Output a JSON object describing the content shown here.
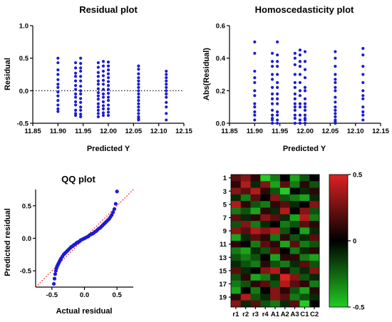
{
  "chart_data": [
    {
      "type": "scatter",
      "title": "Residual plot",
      "xlabel": "Predicted Y",
      "ylabel": "Residual",
      "xlim": [
        11.85,
        12.15
      ],
      "ylim": [
        -0.5,
        1.0
      ],
      "xticks": [
        "11.85",
        "11.90",
        "11.95",
        "12.00",
        "12.05",
        "12.10",
        "12.15"
      ],
      "yticks": [
        "-0.5",
        "0.0",
        "0.5",
        "1.0"
      ],
      "reference_line": {
        "y": 0.0,
        "style": "dotted"
      },
      "color": "#1b1bd6",
      "series": [
        {
          "x": [
            11.9,
            11.9,
            11.9,
            11.9,
            11.9,
            11.9,
            11.9,
            11.9,
            11.9,
            11.9,
            11.9,
            11.9,
            11.9,
            11.935,
            11.935,
            11.935,
            11.935,
            11.935,
            11.935,
            11.935,
            11.935,
            11.935,
            11.935,
            11.935,
            11.935,
            11.935,
            11.935,
            11.945,
            11.945,
            11.945,
            11.945,
            11.945,
            11.945,
            11.945,
            11.945,
            11.945,
            11.945,
            11.945,
            11.945,
            11.945,
            11.945,
            11.945,
            11.98,
            11.98,
            11.98,
            11.98,
            11.98,
            11.98,
            11.98,
            11.98,
            11.98,
            11.98,
            11.98,
            11.98,
            11.98,
            11.98,
            11.98,
            11.99,
            11.99,
            11.99,
            11.99,
            11.99,
            11.99,
            11.99,
            11.99,
            11.99,
            11.99,
            11.99,
            11.99,
            11.99,
            11.99,
            12.0,
            12.0,
            12.0,
            12.0,
            12.0,
            12.0,
            12.0,
            12.0,
            12.0,
            12.0,
            12.0,
            12.0,
            12.0,
            12.0,
            12.0,
            12.06,
            12.06,
            12.06,
            12.06,
            12.06,
            12.06,
            12.06,
            12.06,
            12.06,
            12.06,
            12.06,
            12.06,
            12.06,
            12.06,
            12.06,
            12.06,
            12.06,
            12.06,
            12.115,
            12.115,
            12.115,
            12.115,
            12.115,
            12.115,
            12.115,
            12.115,
            12.115,
            12.115,
            12.115,
            12.115,
            12.115
          ],
          "y": [
            0.5,
            0.43,
            0.32,
            0.25,
            0.17,
            0.1,
            0.05,
            -0.02,
            -0.08,
            -0.15,
            -0.22,
            -0.28,
            -0.32,
            0.43,
            0.35,
            0.27,
            0.22,
            0.15,
            0.08,
            0.02,
            -0.05,
            -0.1,
            -0.17,
            -0.22,
            -0.3,
            -0.35,
            -0.38,
            0.5,
            0.42,
            0.35,
            0.3,
            0.22,
            0.15,
            0.07,
            0.0,
            -0.05,
            -0.12,
            -0.18,
            -0.25,
            -0.3,
            -0.36,
            -0.4,
            0.43,
            0.36,
            0.28,
            0.22,
            0.15,
            0.1,
            0.03,
            -0.03,
            -0.08,
            -0.13,
            -0.2,
            -0.25,
            -0.3,
            -0.35,
            -0.4,
            0.45,
            0.38,
            0.3,
            0.23,
            0.16,
            0.1,
            0.02,
            -0.05,
            -0.1,
            -0.17,
            -0.23,
            -0.28,
            -0.34,
            -0.38,
            0.44,
            0.38,
            0.32,
            0.26,
            0.2,
            0.14,
            0.08,
            0.02,
            -0.04,
            -0.1,
            -0.15,
            -0.22,
            -0.28,
            -0.33,
            -0.38,
            0.38,
            0.33,
            0.26,
            0.2,
            0.15,
            0.1,
            0.05,
            0.0,
            -0.05,
            -0.1,
            -0.15,
            -0.2,
            -0.25,
            -0.3,
            -0.35,
            -0.4,
            -0.43,
            -0.45,
            0.3,
            0.25,
            0.2,
            0.15,
            0.1,
            0.05,
            0.0,
            -0.05,
            -0.1,
            -0.18,
            -0.25,
            -0.35,
            -0.45
          ]
        }
      ]
    },
    {
      "type": "scatter",
      "title": "Homoscedasticity plot",
      "xlabel": "Predicted Y",
      "ylabel": "Abs(Residual)",
      "xlim": [
        11.85,
        12.15
      ],
      "ylim": [
        0.0,
        0.6
      ],
      "xticks": [
        "11.85",
        "11.90",
        "11.95",
        "12.00",
        "12.05",
        "12.10",
        "12.15"
      ],
      "yticks": [
        "0.0",
        "0.2",
        "0.4",
        "0.6"
      ],
      "color": "#1b1bd6",
      "series": [
        {
          "x": [
            11.9,
            11.9,
            11.9,
            11.9,
            11.9,
            11.9,
            11.9,
            11.9,
            11.9,
            11.9,
            11.9,
            11.9,
            11.935,
            11.935,
            11.935,
            11.935,
            11.935,
            11.935,
            11.935,
            11.935,
            11.935,
            11.935,
            11.935,
            11.935,
            11.935,
            11.935,
            11.945,
            11.945,
            11.945,
            11.945,
            11.945,
            11.945,
            11.945,
            11.945,
            11.945,
            11.945,
            11.945,
            11.945,
            11.945,
            11.945,
            11.98,
            11.98,
            11.98,
            11.98,
            11.98,
            11.98,
            11.98,
            11.98,
            11.98,
            11.98,
            11.98,
            11.98,
            11.98,
            11.98,
            11.99,
            11.99,
            11.99,
            11.99,
            11.99,
            11.99,
            11.99,
            11.99,
            11.99,
            11.99,
            11.99,
            11.99,
            11.99,
            12.0,
            12.0,
            12.0,
            12.0,
            12.0,
            12.0,
            12.0,
            12.0,
            12.0,
            12.0,
            12.0,
            12.0,
            12.0,
            12.0,
            12.06,
            12.06,
            12.06,
            12.06,
            12.06,
            12.06,
            12.06,
            12.06,
            12.06,
            12.06,
            12.06,
            12.06,
            12.06,
            12.06,
            12.06,
            12.06,
            12.06,
            12.115,
            12.115,
            12.115,
            12.115,
            12.115,
            12.115,
            12.115,
            12.115,
            12.115,
            12.115,
            12.115,
            12.115
          ],
          "y": [
            0.5,
            0.43,
            0.32,
            0.28,
            0.25,
            0.2,
            0.17,
            0.12,
            0.1,
            0.07,
            0.05,
            0.02,
            0.43,
            0.38,
            0.35,
            0.3,
            0.27,
            0.22,
            0.18,
            0.15,
            0.12,
            0.08,
            0.05,
            0.03,
            0.02,
            0.0,
            0.5,
            0.42,
            0.38,
            0.35,
            0.3,
            0.25,
            0.22,
            0.18,
            0.15,
            0.12,
            0.07,
            0.05,
            0.02,
            0.0,
            0.43,
            0.4,
            0.36,
            0.3,
            0.25,
            0.22,
            0.18,
            0.15,
            0.12,
            0.1,
            0.08,
            0.05,
            0.03,
            0.0,
            0.45,
            0.42,
            0.38,
            0.35,
            0.3,
            0.25,
            0.2,
            0.17,
            0.12,
            0.1,
            0.05,
            0.02,
            0.0,
            0.44,
            0.38,
            0.33,
            0.28,
            0.22,
            0.2,
            0.15,
            0.12,
            0.1,
            0.08,
            0.05,
            0.03,
            0.02,
            0.0,
            0.44,
            0.4,
            0.35,
            0.3,
            0.27,
            0.25,
            0.22,
            0.2,
            0.16,
            0.13,
            0.1,
            0.08,
            0.06,
            0.04,
            0.02,
            0.01,
            0.0,
            0.46,
            0.42,
            0.35,
            0.3,
            0.25,
            0.2,
            0.17,
            0.15,
            0.1,
            0.07,
            0.05,
            0.02
          ]
        }
      ]
    },
    {
      "type": "scatter",
      "title": "QQ plot",
      "xlabel": "Actual residual",
      "ylabel": "Predicted residual",
      "xlim": [
        -0.75,
        0.75
      ],
      "ylim": [
        -0.75,
        0.75
      ],
      "xticks": [
        "-0.5",
        "0.0",
        "0.5"
      ],
      "yticks": [
        "-0.5",
        "0.0",
        "0.5"
      ],
      "xtick_values": [
        -0.5,
        0.0,
        0.5
      ],
      "ytick_values": [
        -0.5,
        0.0,
        0.5
      ],
      "reference_line": {
        "slope": 1,
        "intercept": 0,
        "style": "dotted",
        "color": "#e01b1b"
      },
      "color": "#1b1bd6",
      "series": [
        {
          "x": [
            -0.47,
            -0.46,
            -0.45,
            -0.44,
            -0.43,
            -0.42,
            -0.41,
            -0.4,
            -0.39,
            -0.38,
            -0.37,
            -0.36,
            -0.34,
            -0.32,
            -0.3,
            -0.28,
            -0.26,
            -0.24,
            -0.22,
            -0.2,
            -0.18,
            -0.16,
            -0.14,
            -0.12,
            -0.1,
            -0.08,
            -0.06,
            -0.04,
            -0.02,
            0.0,
            0.02,
            0.04,
            0.06,
            0.08,
            0.1,
            0.12,
            0.14,
            0.16,
            0.18,
            0.2,
            0.22,
            0.24,
            0.26,
            0.28,
            0.3,
            0.32,
            0.34,
            0.36,
            0.38,
            0.4,
            0.42,
            0.44,
            0.46,
            0.48,
            0.5
          ],
          "y": [
            -0.7,
            -0.62,
            -0.55,
            -0.5,
            -0.46,
            -0.43,
            -0.41,
            -0.39,
            -0.37,
            -0.35,
            -0.33,
            -0.31,
            -0.28,
            -0.25,
            -0.23,
            -0.21,
            -0.19,
            -0.17,
            -0.15,
            -0.13,
            -0.12,
            -0.1,
            -0.09,
            -0.07,
            -0.06,
            -0.05,
            -0.03,
            -0.02,
            -0.01,
            0.0,
            0.01,
            0.02,
            0.03,
            0.05,
            0.06,
            0.07,
            0.08,
            0.1,
            0.11,
            0.13,
            0.15,
            0.16,
            0.18,
            0.2,
            0.22,
            0.24,
            0.26,
            0.28,
            0.3,
            0.33,
            0.36,
            0.4,
            0.45,
            0.53,
            0.72
          ]
        }
      ]
    },
    {
      "type": "heatmap",
      "title": "",
      "columns": [
        "r1",
        "r2",
        "r3",
        "r4",
        "A1",
        "A2",
        "A3",
        "C1",
        "C2"
      ],
      "row_tick_labels": [
        "1",
        "3",
        "5",
        "7",
        "9",
        "11",
        "13",
        "15",
        "17",
        "19"
      ],
      "rows": 20,
      "colorbar": {
        "min": -0.5,
        "max": 0.5,
        "ticks": [
          "0.5",
          "0",
          "-0.5"
        ],
        "low_color": "#22cc22",
        "mid_color": "#000000",
        "high_color": "#dd2222"
      },
      "values": [
        [
          0.2,
          0.3,
          0.1,
          -0.5,
          -0.3,
          0.0,
          -0.4,
          -0.2,
          0.0
        ],
        [
          0.1,
          0.4,
          -0.1,
          0.3,
          -0.4,
          0.2,
          -0.3,
          0.1,
          -0.2
        ],
        [
          0.3,
          0.2,
          0.4,
          0.1,
          -0.2,
          -0.5,
          0.0,
          -0.1,
          0.1
        ],
        [
          -0.1,
          -0.3,
          0.2,
          0.0,
          0.3,
          -0.2,
          -0.3,
          -0.4,
          -0.1
        ],
        [
          0.4,
          0.1,
          -0.2,
          -0.3,
          0.1,
          0.2,
          -0.1,
          0.0,
          0.3
        ],
        [
          -0.3,
          -0.2,
          -0.4,
          0.1,
          -0.1,
          0.4,
          0.0,
          0.3,
          -0.2
        ],
        [
          0.2,
          -0.1,
          0.1,
          0.3,
          0.2,
          -0.1,
          -0.4,
          0.4,
          -0.3
        ],
        [
          -0.2,
          0.3,
          -0.3,
          -0.1,
          0.0,
          -0.3,
          -0.2,
          0.2,
          0.1
        ],
        [
          0.3,
          0.2,
          0.4,
          0.3,
          0.4,
          -0.2,
          0.0,
          -0.4,
          -0.1
        ],
        [
          -0.4,
          -0.1,
          0.2,
          0.1,
          -0.3,
          0.1,
          -0.2,
          -0.1,
          0.2
        ],
        [
          0.1,
          0.0,
          -0.3,
          0.2,
          0.1,
          -0.4,
          0.2,
          -0.3,
          -0.2
        ],
        [
          -0.3,
          -0.4,
          -0.1,
          -0.2,
          0.2,
          0.0,
          -0.3,
          -0.1,
          0.1
        ],
        [
          -0.2,
          -0.3,
          -0.2,
          0.0,
          -0.4,
          0.1,
          0.1,
          -0.3,
          -0.4
        ],
        [
          -0.1,
          -0.2,
          -0.3,
          0.1,
          -0.2,
          -0.3,
          -0.1,
          0.2,
          -0.2
        ],
        [
          0.2,
          -0.1,
          0.0,
          0.3,
          0.4,
          0.1,
          -0.2,
          -0.1,
          0.3
        ],
        [
          -0.2,
          0.1,
          -0.4,
          -0.3,
          -0.1,
          0.5,
          0.3,
          -0.2,
          -0.1
        ],
        [
          -0.3,
          -0.2,
          0.1,
          0.2,
          -0.2,
          0.4,
          0.2,
          0.1,
          -0.3
        ],
        [
          -0.4,
          0.0,
          -0.3,
          0.0,
          0.3,
          0.1,
          -0.2,
          -0.4,
          0.1
        ],
        [
          0.1,
          0.4,
          -0.2,
          -0.1,
          0.3,
          0.2,
          -0.3,
          -0.2,
          -0.1
        ],
        [
          0.3,
          -0.1,
          0.2,
          -0.2,
          -0.3,
          -0.1,
          0.2,
          -0.5,
          0.0
        ]
      ]
    }
  ]
}
